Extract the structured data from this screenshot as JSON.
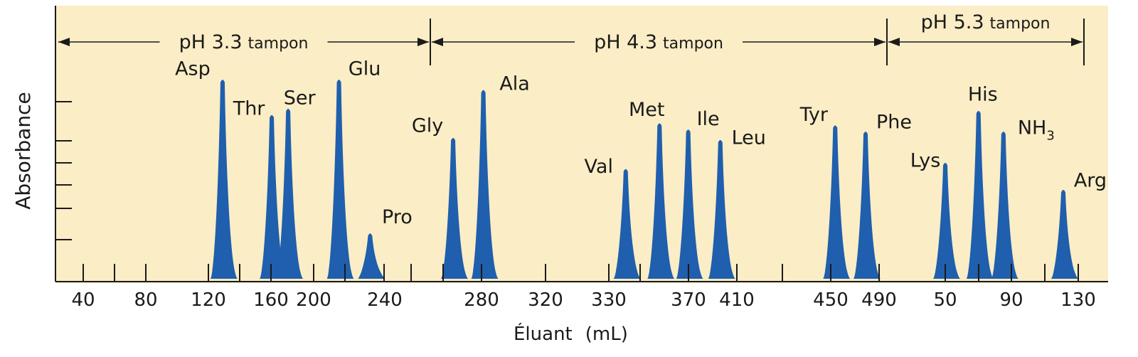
{
  "chart_data": {
    "type": "area",
    "title": "",
    "xlabel": "Éluant",
    "xlabel_unit": "(mL)",
    "ylabel": "Absorbance",
    "colors": {
      "background": "#fbedc6",
      "peak": "#1f5fad",
      "axis": "#1a1a1a"
    },
    "x_ticks": [
      "40",
      "80",
      "120",
      "160",
      "200",
      "240",
      "280",
      "320",
      "330",
      "370",
      "410",
      "450",
      "490",
      "50",
      "90",
      "130"
    ],
    "buffers": [
      {
        "label": "pH 3.3",
        "suffix": "tampon"
      },
      {
        "label": "pH 4.3",
        "suffix": "tampon"
      },
      {
        "label": "pH 5.3",
        "suffix": "tampon"
      }
    ],
    "peaks": [
      {
        "name": "Asp",
        "sub": "",
        "buffer": 0,
        "x": 125,
        "height": 0.96
      },
      {
        "name": "Thr",
        "sub": "",
        "buffer": 0,
        "x": 155,
        "height": 0.79
      },
      {
        "name": "Ser",
        "sub": "",
        "buffer": 0,
        "x": 165,
        "height": 0.82
      },
      {
        "name": "Glu",
        "sub": "",
        "buffer": 0,
        "x": 196,
        "height": 0.96
      },
      {
        "name": "Pro",
        "sub": "",
        "buffer": 0,
        "x": 215,
        "height": 0.22
      },
      {
        "name": "Gly",
        "sub": "",
        "buffer": 0,
        "x": 265,
        "height": 0.68
      },
      {
        "name": "Ala",
        "sub": "",
        "buffer": 0,
        "x": 283,
        "height": 0.91
      },
      {
        "name": "Val",
        "sub": "",
        "buffer": 1,
        "x": 340,
        "height": 0.53
      },
      {
        "name": "Met",
        "sub": "",
        "buffer": 1,
        "x": 360,
        "height": 0.75
      },
      {
        "name": "Ile",
        "sub": "",
        "buffer": 1,
        "x": 377,
        "height": 0.72
      },
      {
        "name": "Leu",
        "sub": "",
        "buffer": 1,
        "x": 396,
        "height": 0.67
      },
      {
        "name": "Tyr",
        "sub": "",
        "buffer": 1,
        "x": 464,
        "height": 0.74
      },
      {
        "name": "Phe",
        "sub": "",
        "buffer": 1,
        "x": 482,
        "height": 0.71
      },
      {
        "name": "Lys",
        "sub": "",
        "buffer": 2,
        "x": 50,
        "height": 0.56
      },
      {
        "name": "His",
        "sub": "",
        "buffer": 2,
        "x": 70,
        "height": 0.81
      },
      {
        "name": "NH",
        "sub": "3",
        "buffer": 2,
        "x": 85,
        "height": 0.71
      },
      {
        "name": "Arg",
        "sub": "",
        "buffer": 2,
        "x": 121,
        "height": 0.43
      }
    ]
  }
}
